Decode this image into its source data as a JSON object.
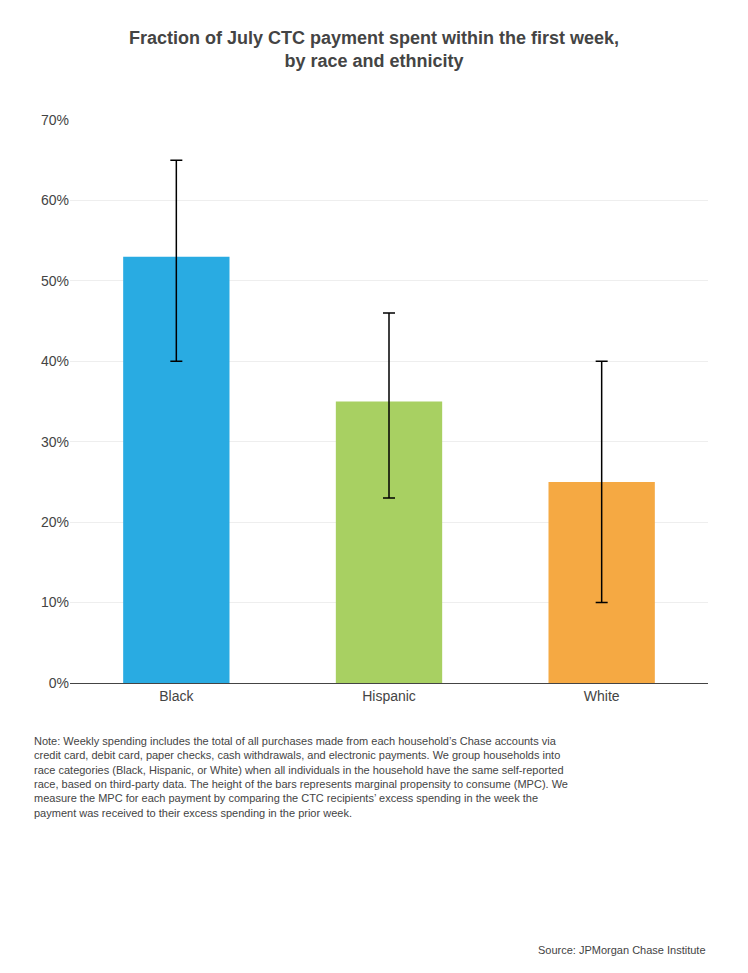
{
  "chart_data": {
    "type": "bar",
    "title": "Fraction of July CTC payment spent within the first week,\nby race and ethnicity",
    "categories": [
      "Black",
      "Hispanic",
      "White"
    ],
    "values": [
      0.53,
      0.35,
      0.25
    ],
    "error_lower": [
      0.13,
      0.12,
      0.15
    ],
    "error_upper": [
      0.12,
      0.11,
      0.15
    ],
    "colors": [
      "#29ABE2",
      "#A8D062",
      "#F5A943"
    ],
    "ylim": [
      0,
      0.7
    ],
    "yticks": [
      {
        "value": 0.0,
        "label": "0%"
      },
      {
        "value": 0.1,
        "label": "10%"
      },
      {
        "value": 0.2,
        "label": "20%"
      },
      {
        "value": 0.3,
        "label": "30%"
      },
      {
        "value": 0.4,
        "label": "40%"
      },
      {
        "value": 0.5,
        "label": "50%"
      },
      {
        "value": 0.6,
        "label": "60%"
      },
      {
        "value": 0.7,
        "label": "70%"
      }
    ],
    "grid": true,
    "note": "Note: Weekly spending includes the total of all purchases made from each household’s Chase accounts via\ncredit card, debit card, paper checks, cash withdrawals, and electronic payments. We group households into\nrace categories (Black, Hispanic, or White) when all individuals in the household have the same self-reported\nrace, based on third-party data. The height of the bars represents marginal propensity to consume (MPC). We\nmeasure the MPC for each payment by comparing the CTC recipients’ excess spending in the week the\npayment was received to their excess spending in the prior week.",
    "source": "Source: JPMorgan Chase Institute"
  }
}
